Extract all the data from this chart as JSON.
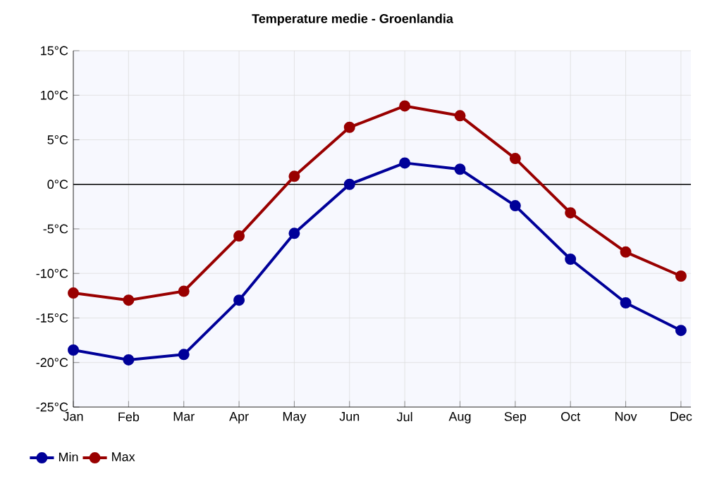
{
  "chart_data": {
    "type": "line",
    "title": "Temperature medie - Groenlandia",
    "categories": [
      "Jan",
      "Feb",
      "Mar",
      "Apr",
      "May",
      "Jun",
      "Jul",
      "Aug",
      "Sep",
      "Oct",
      "Nov",
      "Dec"
    ],
    "series": [
      {
        "name": "Min",
        "color": "#000099",
        "values": [
          -18.6,
          -19.7,
          -19.1,
          -13.0,
          -5.5,
          0.0,
          2.4,
          1.7,
          -2.4,
          -8.4,
          -13.3,
          -16.4
        ]
      },
      {
        "name": "Max",
        "color": "#990000",
        "values": [
          -12.2,
          -13.0,
          -12.0,
          -5.8,
          0.9,
          6.4,
          8.8,
          7.7,
          2.9,
          -3.2,
          -7.6,
          -10.3
        ]
      }
    ],
    "ylim": [
      -25,
      15
    ],
    "yticks": [
      {
        "value": -25,
        "label": "-25°C"
      },
      {
        "value": -20,
        "label": "-20°C"
      },
      {
        "value": -15,
        "label": "-15°C"
      },
      {
        "value": -10,
        "label": "-10°C"
      },
      {
        "value": -5,
        "label": "-5°C"
      },
      {
        "value": 0,
        "label": "0°C"
      },
      {
        "value": 5,
        "label": "5°C"
      },
      {
        "value": 10,
        "label": "10°C"
      },
      {
        "value": 15,
        "label": "15°C"
      }
    ],
    "ref_lines": [
      {
        "axis": "y",
        "value": 0,
        "color": "#000000"
      }
    ],
    "grid": true,
    "legend": "bottom left",
    "marker": "circle",
    "line_style": "solid"
  }
}
